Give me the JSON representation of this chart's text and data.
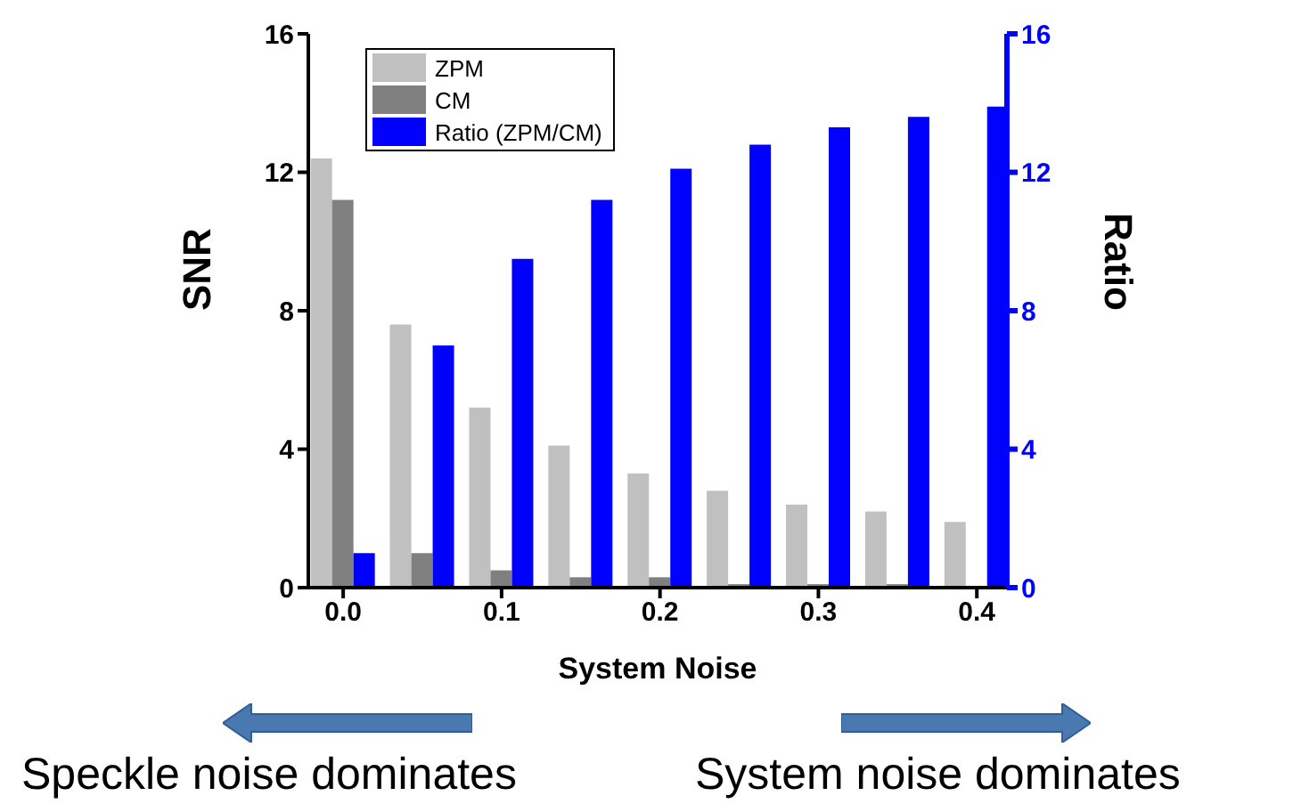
{
  "chart_data": {
    "type": "bar",
    "xlabel": "System Noise",
    "ylabel": "SNR",
    "y2label": "Ratio",
    "x": [
      0,
      0.05,
      0.1,
      0.15,
      0.2,
      0.25,
      0.3,
      0.35,
      0.4
    ],
    "series": [
      {
        "name": "ZPM",
        "color": "#c0c0c0",
        "values": [
          12.4,
          7.6,
          5.2,
          4.1,
          3.3,
          2.8,
          2.4,
          2.2,
          1.9
        ]
      },
      {
        "name": "CM",
        "color": "#808080",
        "values": [
          11.2,
          1.0,
          0.5,
          0.3,
          0.3,
          0.1,
          0.1,
          0.1,
          0.0
        ]
      },
      {
        "name": "Ratio (ZPM/CM)",
        "color": "#0000ff",
        "axis": "y2",
        "values": [
          1.0,
          7.0,
          9.5,
          11.2,
          12.1,
          12.8,
          13.3,
          13.6,
          13.9
        ]
      }
    ],
    "xlim": [
      -0.022,
      0.419
    ],
    "xticks": [
      {
        "value": 0,
        "label": "0.0"
      },
      {
        "value": 0.1,
        "label": "0.1"
      },
      {
        "value": 0.2,
        "label": "0.2"
      },
      {
        "value": 0.3,
        "label": "0.3"
      },
      {
        "value": 0.4,
        "label": "0.4"
      }
    ],
    "ylim": [
      0,
      16
    ],
    "yticks": [
      0,
      4,
      8,
      12,
      16
    ],
    "y2lim": [
      0,
      16
    ],
    "y2ticks": [
      0,
      4,
      8,
      12,
      16
    ],
    "legend": "top left",
    "grid": false,
    "annotations": [
      "Speckle noise dominates",
      "System noise dominates"
    ]
  }
}
